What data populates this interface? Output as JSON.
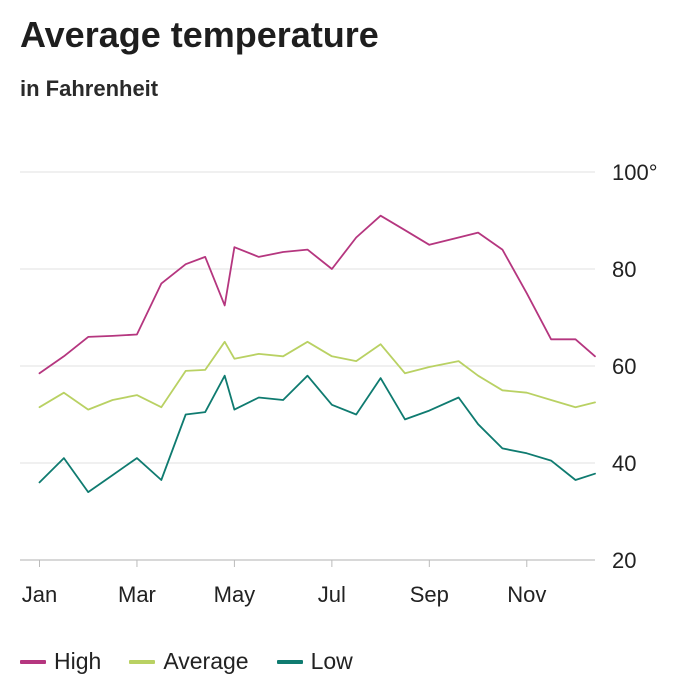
{
  "chart_data": {
    "type": "line",
    "title": "Average temperature",
    "subtitle": "in Fahrenheit",
    "x_months": [
      0,
      0.5,
      1,
      1.5,
      2,
      2.5,
      3,
      3.4,
      3.8,
      4,
      4.5,
      5,
      5.5,
      6,
      6.5,
      7,
      7.5,
      8,
      8.6,
      9,
      9.5,
      10,
      10.5,
      11,
      11.4
    ],
    "x_ticks": [
      {
        "pos": 0,
        "label": "Jan"
      },
      {
        "pos": 2,
        "label": "Mar"
      },
      {
        "pos": 4,
        "label": "May"
      },
      {
        "pos": 6,
        "label": "Jul"
      },
      {
        "pos": 8,
        "label": "Sep"
      },
      {
        "pos": 10,
        "label": "Nov"
      }
    ],
    "y_ticks": [
      {
        "value": 20,
        "label": "20"
      },
      {
        "value": 40,
        "label": "40"
      },
      {
        "value": 60,
        "label": "60"
      },
      {
        "value": 80,
        "label": "80"
      },
      {
        "value": 100,
        "label": "100°"
      }
    ],
    "xlim": [
      -0.4,
      11.4
    ],
    "ylim": [
      20,
      100
    ],
    "grid": true,
    "legend_position": "bottom-left",
    "series": [
      {
        "name": "High",
        "color": "#b5367f",
        "values": [
          58.5,
          62,
          66,
          66.2,
          66.5,
          77,
          81,
          82.5,
          72.5,
          84.5,
          82.5,
          83.5,
          84,
          80,
          86.5,
          91,
          88,
          85,
          86.5,
          87.5,
          84,
          75,
          65.5,
          65.5,
          62
        ]
      },
      {
        "name": "Average",
        "color": "#b9d163",
        "values": [
          51.5,
          54.5,
          51,
          53,
          54,
          51.5,
          59,
          59.2,
          65,
          61.5,
          62.5,
          62,
          65,
          62,
          61,
          64.5,
          58.5,
          59.8,
          61,
          58,
          55,
          54.5,
          53,
          51.5,
          52.5
        ]
      },
      {
        "name": "Low",
        "color": "#0f7b70",
        "values": [
          36,
          41,
          34,
          37.5,
          41,
          36.5,
          50,
          50.5,
          58,
          51,
          53.5,
          53,
          58,
          52,
          50,
          57.5,
          49,
          50.8,
          53.5,
          48,
          43,
          42,
          40.5,
          36.5,
          37.8
        ]
      }
    ]
  }
}
